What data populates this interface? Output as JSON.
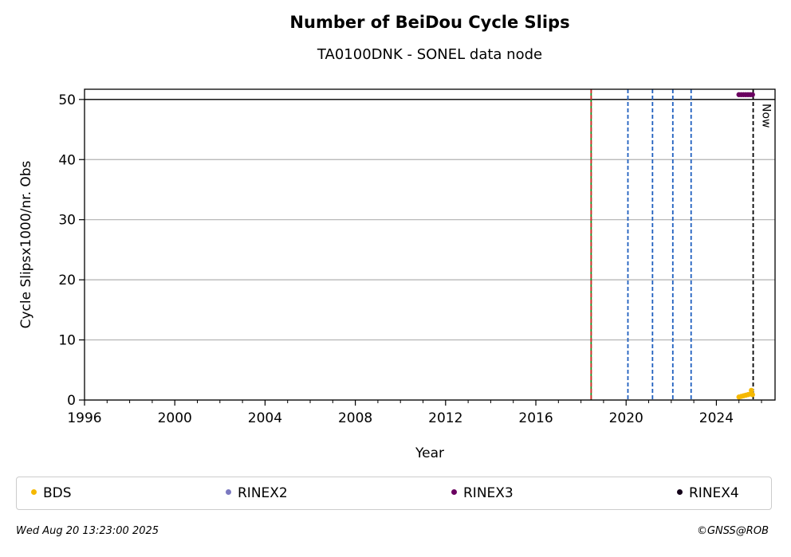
{
  "title": "Number of BeiDou Cycle Slips",
  "subtitle": "TA0100DNK - SONEL data node",
  "footer": {
    "timestamp": "Wed Aug 20 13:23:00 2025",
    "credit": "©GNSS@ROB"
  },
  "legend": [
    {
      "label": "BDS",
      "color": "#f5b800"
    },
    {
      "label": "RINEX2",
      "color": "#7b79c0"
    },
    {
      "label": "RINEX3",
      "color": "#6a0060"
    },
    {
      "label": "RINEX4",
      "color": "#120018"
    }
  ],
  "chart_data": {
    "type": "scatter",
    "title": "Number of BeiDou Cycle Slips",
    "subtitle": "TA0100DNK - SONEL data node",
    "xlabel": "Year",
    "ylabel": "Cycle Slipsx1000/nr. Obs",
    "xlim": [
      1996,
      2026.6
    ],
    "ylim": [
      0,
      51.7
    ],
    "x_ticks": [
      "1996",
      "2000",
      "2004",
      "2008",
      "2012",
      "2016",
      "2020",
      "2024"
    ],
    "y_ticks": [
      "0",
      "10",
      "20",
      "30",
      "40",
      "50"
    ],
    "grid": "horizontal",
    "legend_position": "bottom",
    "reference_line_y": 50,
    "event_lines": [
      {
        "x": 2018.45,
        "color": "#1a8a1a",
        "style": "solid"
      },
      {
        "x": 2018.45,
        "color": "#d62728",
        "style": "dashed"
      },
      {
        "x": 2020.08,
        "color": "#1f5fbf",
        "style": "dashed"
      },
      {
        "x": 2021.17,
        "color": "#1f5fbf",
        "style": "dashed"
      },
      {
        "x": 2022.07,
        "color": "#1f5fbf",
        "style": "dashed"
      },
      {
        "x": 2022.88,
        "color": "#1f5fbf",
        "style": "dashed"
      },
      {
        "x": 2025.63,
        "color": "#000000",
        "style": "dashed",
        "label": "Now"
      }
    ],
    "series": [
      {
        "name": "BDS",
        "color": "#f5b800",
        "x": [
          2025.0,
          2025.1,
          2025.2,
          2025.3,
          2025.4,
          2025.5,
          2025.55,
          2025.6
        ],
        "y": [
          0.5,
          0.6,
          0.7,
          0.8,
          0.9,
          1.0,
          1.6,
          0.9
        ]
      },
      {
        "name": "RINEX2",
        "color": "#7b79c0",
        "x": [],
        "y": []
      },
      {
        "name": "RINEX3",
        "color": "#6a0060",
        "x": [
          2025.0,
          2025.1,
          2025.2,
          2025.3,
          2025.4,
          2025.5,
          2025.6
        ],
        "y": [
          50.8,
          50.8,
          50.8,
          50.8,
          50.8,
          50.8,
          50.8
        ]
      },
      {
        "name": "RINEX4",
        "color": "#120018",
        "x": [],
        "y": []
      }
    ]
  }
}
